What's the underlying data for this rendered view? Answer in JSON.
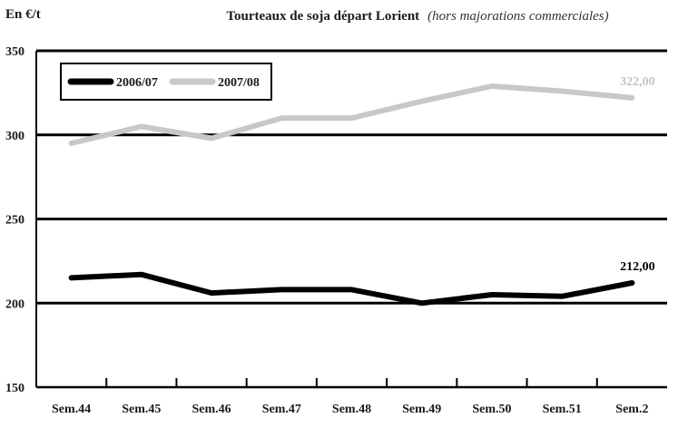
{
  "header": {
    "unit_label": "En €/t",
    "title": "Tourteaux de soja départ Lorient",
    "subtitle": "(hors majorations commerciales)"
  },
  "chart_data": {
    "type": "line",
    "title": "Tourteaux de soja départ Lorient",
    "subtitle": "(hors majorations commerciales)",
    "ylabel": "En €/t",
    "xlabel": "",
    "categories": [
      "Sem.44",
      "Sem.45",
      "Sem.46",
      "Sem.47",
      "Sem.48",
      "Sem.49",
      "Sem.50",
      "Sem.51",
      "Sem.2"
    ],
    "ylim": [
      150,
      350
    ],
    "yticks": [
      150,
      200,
      250,
      300,
      350
    ],
    "grid": true,
    "legend_position": "top-left",
    "series": [
      {
        "name": "2006/07",
        "color": "#000000",
        "values": [
          215,
          217,
          206,
          208,
          208,
          200,
          205,
          204,
          212
        ],
        "end_label": "212,00",
        "label_color": "#000000"
      },
      {
        "name": "2007/08",
        "color": "#c8c8c8",
        "values": [
          295,
          305,
          298,
          310,
          310,
          320,
          329,
          326,
          322
        ],
        "end_label": "322,00",
        "label_color": "#c4c4c4"
      }
    ]
  }
}
